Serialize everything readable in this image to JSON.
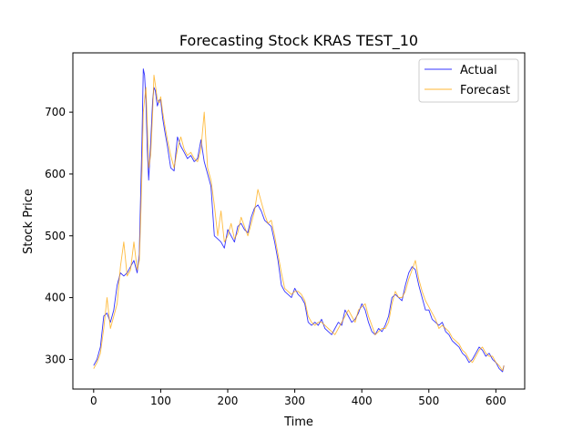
{
  "chart_data": {
    "type": "line",
    "title": "Forecasting Stock KRAS TEST_10",
    "xlabel": "Time",
    "ylabel": "Stock Price",
    "xlim": [
      -31,
      643
    ],
    "ylim": [
      252,
      796
    ],
    "x_ticks": [
      0,
      100,
      200,
      300,
      400,
      500,
      600
    ],
    "y_ticks": [
      300,
      400,
      500,
      600,
      700
    ],
    "grid": false,
    "legend_position": "top-right",
    "series": [
      {
        "name": "Actual",
        "color": "#0000ff",
        "x": [
          0,
          5,
          10,
          15,
          20,
          25,
          30,
          35,
          40,
          45,
          50,
          55,
          60,
          65,
          68,
          70,
          72,
          74,
          76,
          78,
          80,
          82,
          85,
          88,
          90,
          92,
          95,
          98,
          100,
          103,
          106,
          110,
          115,
          120,
          125,
          130,
          135,
          140,
          145,
          150,
          155,
          160,
          165,
          170,
          175,
          180,
          185,
          190,
          195,
          200,
          205,
          210,
          215,
          220,
          225,
          230,
          235,
          240,
          245,
          250,
          255,
          260,
          265,
          270,
          275,
          280,
          285,
          290,
          295,
          300,
          305,
          310,
          315,
          320,
          325,
          330,
          335,
          340,
          345,
          350,
          355,
          360,
          365,
          370,
          375,
          380,
          385,
          390,
          395,
          400,
          405,
          410,
          415,
          420,
          425,
          430,
          435,
          440,
          445,
          450,
          455,
          460,
          465,
          470,
          475,
          480,
          485,
          490,
          495,
          500,
          505,
          510,
          515,
          520,
          525,
          530,
          535,
          540,
          545,
          550,
          555,
          560,
          565,
          570,
          575,
          580,
          585,
          590,
          595,
          600,
          605,
          610,
          612
        ],
        "values": [
          290,
          300,
          320,
          370,
          375,
          360,
          380,
          420,
          440,
          435,
          440,
          450,
          460,
          440,
          470,
          560,
          650,
          770,
          760,
          720,
          640,
          590,
          650,
          720,
          740,
          735,
          710,
          720,
          720,
          690,
          670,
          645,
          610,
          605,
          660,
          645,
          635,
          625,
          630,
          620,
          625,
          655,
          620,
          600,
          580,
          500,
          495,
          490,
          480,
          510,
          500,
          490,
          515,
          520,
          510,
          505,
          530,
          545,
          550,
          540,
          525,
          520,
          515,
          490,
          460,
          420,
          410,
          405,
          400,
          415,
          405,
          400,
          390,
          360,
          355,
          360,
          355,
          365,
          350,
          345,
          340,
          350,
          360,
          355,
          380,
          370,
          360,
          365,
          375,
          390,
          380,
          360,
          345,
          340,
          350,
          345,
          355,
          370,
          400,
          405,
          400,
          395,
          420,
          440,
          450,
          445,
          420,
          400,
          380,
          380,
          365,
          360,
          355,
          360,
          345,
          340,
          330,
          325,
          320,
          310,
          305,
          295,
          300,
          310,
          320,
          315,
          305,
          310,
          300,
          295,
          285,
          280,
          290
        ]
      },
      {
        "name": "Forecast",
        "color": "#ffa500",
        "x": [
          0,
          5,
          10,
          15,
          20,
          25,
          30,
          35,
          40,
          45,
          50,
          55,
          60,
          65,
          68,
          70,
          72,
          74,
          76,
          78,
          80,
          82,
          85,
          88,
          90,
          92,
          95,
          98,
          100,
          103,
          106,
          110,
          115,
          120,
          125,
          130,
          135,
          140,
          145,
          150,
          155,
          160,
          165,
          170,
          175,
          180,
          185,
          190,
          195,
          200,
          205,
          210,
          215,
          220,
          225,
          230,
          235,
          240,
          245,
          250,
          255,
          260,
          265,
          270,
          275,
          280,
          285,
          290,
          295,
          300,
          305,
          310,
          315,
          320,
          325,
          330,
          335,
          340,
          345,
          350,
          355,
          360,
          365,
          370,
          375,
          380,
          385,
          390,
          395,
          400,
          405,
          410,
          415,
          420,
          425,
          430,
          435,
          440,
          445,
          450,
          455,
          460,
          465,
          470,
          475,
          480,
          485,
          490,
          495,
          500,
          505,
          510,
          515,
          520,
          525,
          530,
          535,
          540,
          545,
          550,
          555,
          560,
          565,
          570,
          575,
          580,
          585,
          590,
          595,
          600,
          605,
          610,
          612
        ],
        "values": [
          285,
          295,
          310,
          350,
          400,
          350,
          370,
          390,
          450,
          490,
          435,
          445,
          490,
          445,
          460,
          520,
          600,
          700,
          720,
          740,
          680,
          610,
          630,
          700,
          760,
          745,
          720,
          715,
          725,
          700,
          680,
          655,
          630,
          610,
          640,
          660,
          640,
          630,
          635,
          625,
          620,
          640,
          700,
          610,
          590,
          550,
          500,
          540,
          490,
          500,
          520,
          495,
          505,
          530,
          515,
          500,
          520,
          540,
          575,
          555,
          535,
          520,
          525,
          500,
          470,
          440,
          415,
          410,
          405,
          410,
          410,
          405,
          395,
          370,
          360,
          355,
          360,
          360,
          355,
          350,
          345,
          340,
          350,
          360,
          370,
          380,
          370,
          360,
          380,
          385,
          390,
          370,
          355,
          340,
          345,
          350,
          350,
          360,
          390,
          410,
          400,
          400,
          410,
          430,
          445,
          460,
          430,
          410,
          395,
          385,
          375,
          365,
          350,
          355,
          350,
          345,
          335,
          330,
          325,
          315,
          310,
          300,
          295,
          305,
          315,
          320,
          310,
          305,
          305,
          295,
          290,
          282,
          290
        ]
      }
    ]
  }
}
